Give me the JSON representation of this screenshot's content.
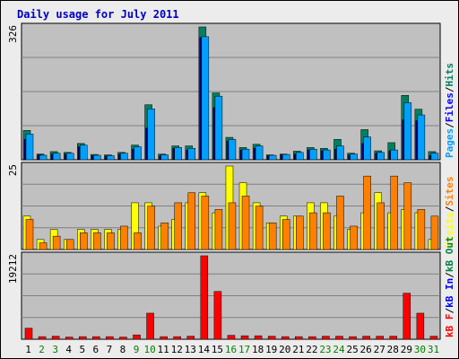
{
  "title": "Daily usage for July 2011",
  "colors": {
    "hits": "#008060",
    "files": "#00a0ff",
    "visits": "#ffff00",
    "sites": "#ff8000",
    "kbin": "#0000ff",
    "kbout": "#008040",
    "kbf": "#ff0000",
    "weekend": "#008000",
    "weekday": "#000000"
  },
  "chart_data": {
    "type": "bar",
    "categories": [
      "1",
      "2",
      "3",
      "4",
      "5",
      "6",
      "7",
      "8",
      "9",
      "10",
      "11",
      "12",
      "13",
      "14",
      "15",
      "16",
      "17",
      "18",
      "19",
      "20",
      "21",
      "22",
      "23",
      "24",
      "25",
      "26",
      "27",
      "28",
      "29",
      "30",
      "31"
    ],
    "weekend_days": [
      "2",
      "3",
      "9",
      "10",
      "16",
      "17",
      "23",
      "24",
      "30",
      "31"
    ],
    "panels": [
      {
        "name": "top",
        "max_label": "326",
        "ymax": 326,
        "legend": [
          "Pages",
          "/",
          "Files",
          "/",
          "Hits"
        ],
        "legend_colors": [
          "files",
          "text",
          "kbin",
          "text",
          "hits"
        ],
        "series": [
          {
            "name": "Hits",
            "values": [
              72,
              14,
              20,
              18,
              40,
              13,
              12,
              18,
              36,
              135,
              14,
              34,
              34,
              326,
              164,
              55,
              30,
              38,
              12,
              14,
              21,
              30,
              28,
              50,
              16,
              74,
              22,
              42,
              158,
              124,
              20
            ]
          },
          {
            "name": "Pages",
            "values": [
              50,
              12,
              14,
              14,
              32,
              10,
              9,
              14,
              26,
              78,
              10,
              28,
              24,
              300,
              128,
              46,
              24,
              28,
              10,
              12,
              14,
              24,
              22,
              26,
              12,
              40,
              16,
              22,
              98,
              96,
              10
            ]
          },
          {
            "name": "Files",
            "values": [
              63,
              11,
              16,
              16,
              36,
              11,
              10,
              16,
              32,
              125,
              12,
              30,
              28,
              302,
              156,
              50,
              26,
              34,
              11,
              13,
              18,
              26,
              24,
              34,
              14,
              56,
              18,
              24,
              140,
              110,
              16
            ]
          }
        ]
      },
      {
        "name": "middle",
        "max_label": "25",
        "ymax": 25,
        "legend": [
          "Visits",
          "/",
          "Sites"
        ],
        "legend_colors": [
          "visits",
          "text",
          "sites"
        ],
        "series": [
          {
            "name": "Visits",
            "values": [
              10,
              3,
              6,
              3,
              6,
              6,
              6,
              6,
              14,
              14,
              7,
              9,
              14,
              17,
              11,
              25,
              20,
              14,
              8,
              10,
              10,
              14,
              14,
              10,
              6,
              11,
              17,
              11,
              12,
              11,
              3
            ]
          },
          {
            "name": "Sites",
            "values": [
              9,
              2,
              4,
              3,
              5,
              5,
              5,
              7,
              5,
              13,
              8,
              14,
              17,
              16,
              12,
              14,
              16,
              13,
              8,
              9,
              10,
              11,
              11,
              16,
              7,
              22,
              14,
              22,
              20,
              12,
              10
            ]
          }
        ]
      },
      {
        "name": "bottom",
        "max_label": "19212",
        "ymax": 19212,
        "legend": [
          "kB F",
          "/",
          "kB In",
          "/",
          "kB Out"
        ],
        "legend_colors": [
          "kbf",
          "text",
          "kbin",
          "text",
          "kbout"
        ],
        "series": [
          {
            "name": "kB F",
            "values": [
              2550,
              600,
              700,
              500,
              600,
              600,
              600,
              500,
              1000,
              6000,
              600,
              600,
              700,
              19212,
              11000,
              900,
              800,
              800,
              700,
              600,
              600,
              600,
              700,
              700,
              600,
              700,
              700,
              700,
              10600,
              6000,
              700
            ]
          }
        ]
      }
    ]
  }
}
